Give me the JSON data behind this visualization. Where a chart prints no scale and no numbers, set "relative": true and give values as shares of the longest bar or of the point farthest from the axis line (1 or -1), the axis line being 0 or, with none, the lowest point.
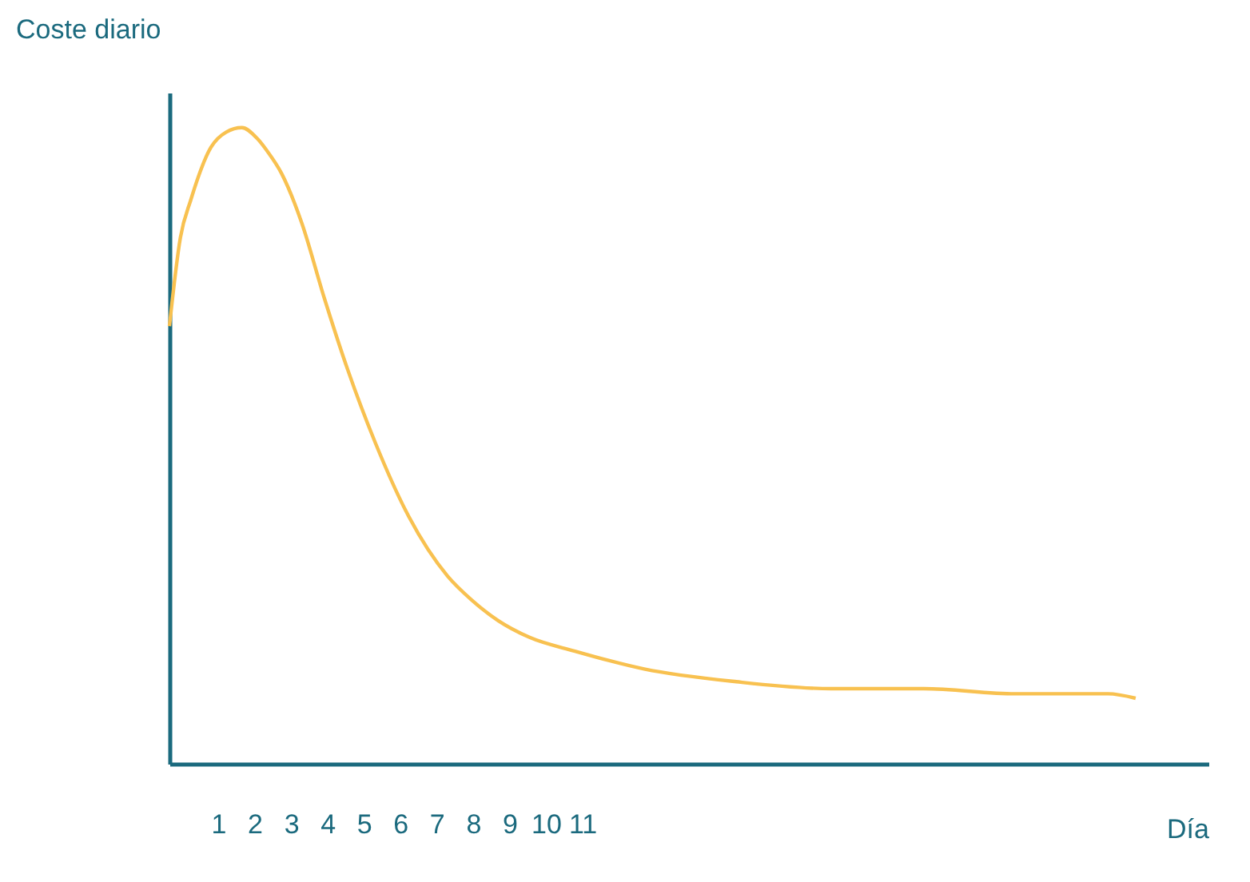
{
  "chart_data": {
    "type": "line",
    "title": "Coste diario",
    "xlabel": "Día",
    "relative": true,
    "color": "#f8c150",
    "grid": false,
    "marker": "none",
    "line_style": "solid",
    "xlim": [
      -0.34,
      28.2
    ],
    "xticks": [
      1,
      2,
      3,
      4,
      5,
      6,
      7,
      8,
      9,
      10,
      11
    ],
    "x": [
      -0.34,
      -0.04,
      0.25,
      0.8,
      1.22,
      1.65,
      2.07,
      2.36,
      2.74,
      3.29,
      3.92,
      4.56,
      5.32,
      6.24,
      7.3,
      7.97,
      8.69,
      9.54,
      10.8,
      12.7,
      15.23,
      17.85,
      20.38,
      22.9,
      25.44,
      26.2
    ],
    "values": [
      0.688,
      0.827,
      0.887,
      0.969,
      0.993,
      1.0,
      0.983,
      0.962,
      0.928,
      0.851,
      0.731,
      0.619,
      0.504,
      0.388,
      0.295,
      0.257,
      0.225,
      0.199,
      0.177,
      0.149,
      0.129,
      0.118,
      0.118,
      0.11,
      0.11,
      0.103
    ]
  }
}
